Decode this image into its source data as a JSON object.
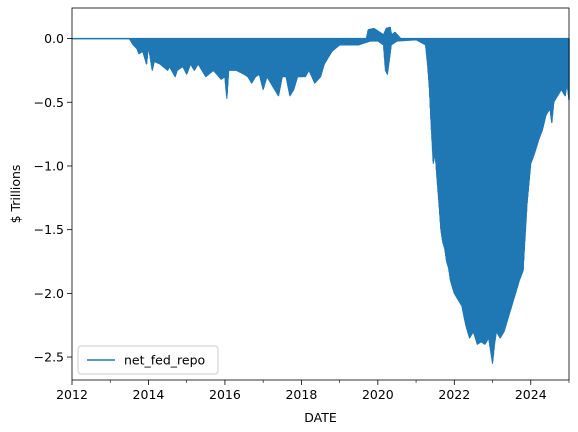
{
  "chart_data": {
    "type": "area",
    "xlabel": "DATE",
    "ylabel": "$ Trillions",
    "xlim": [
      2012.0,
      2025.0
    ],
    "ylim": [
      -2.68,
      0.24
    ],
    "grid": false,
    "legend": {
      "placement": "lower-left"
    },
    "x_ticks": [
      {
        "value": 2012,
        "label": "2012"
      },
      {
        "value": 2014,
        "label": "2014"
      },
      {
        "value": 2016,
        "label": "2016"
      },
      {
        "value": 2018,
        "label": "2018"
      },
      {
        "value": 2020,
        "label": "2020"
      },
      {
        "value": 2022,
        "label": "2022"
      },
      {
        "value": 2024,
        "label": "2024"
      }
    ],
    "x_minor_ticks": [
      2013,
      2015,
      2017,
      2019,
      2021,
      2023,
      2025
    ],
    "y_ticks": [
      {
        "value": 0.0,
        "label": "0.0"
      },
      {
        "value": -0.5,
        "label": "−0.5"
      },
      {
        "value": -1.0,
        "label": "−1.0"
      },
      {
        "value": -1.5,
        "label": "−1.5"
      },
      {
        "value": -2.0,
        "label": "−2.0"
      },
      {
        "value": -2.5,
        "label": "−2.5"
      }
    ],
    "series": [
      {
        "name": "net_fed_repo",
        "color": "#1f77b4",
        "upper_envelope": {
          "x": [
            2012.0,
            2019.7,
            2019.75,
            2019.9,
            2020.0,
            2020.15,
            2020.22,
            2020.32,
            2020.36,
            2020.45,
            2020.6,
            2025.0
          ],
          "y": [
            0.0,
            0.0,
            0.07,
            0.08,
            0.06,
            0.03,
            0.08,
            0.09,
            0.03,
            0.05,
            0.0,
            0.0
          ]
        },
        "lower_envelope": {
          "x": [
            2012.0,
            2013.5,
            2013.6,
            2013.7,
            2013.75,
            2013.85,
            2013.95,
            2014.0,
            2014.1,
            2014.15,
            2014.3,
            2014.5,
            2014.55,
            2014.7,
            2014.75,
            2014.9,
            2015.0,
            2015.1,
            2015.2,
            2015.3,
            2015.5,
            2015.7,
            2015.9,
            2016.0,
            2016.05,
            2016.1,
            2016.3,
            2016.5,
            2016.6,
            2016.7,
            2016.8,
            2016.9,
            2017.0,
            2017.1,
            2017.2,
            2017.3,
            2017.4,
            2017.5,
            2017.6,
            2017.7,
            2017.8,
            2017.9,
            2018.0,
            2018.1,
            2018.2,
            2018.35,
            2018.5,
            2018.6,
            2018.8,
            2019.0,
            2019.2,
            2019.5,
            2019.8,
            2020.0,
            2020.15,
            2020.2,
            2020.25,
            2020.35,
            2020.5,
            2021.0,
            2021.25,
            2021.3,
            2021.35,
            2021.4,
            2021.45,
            2021.5,
            2021.55,
            2021.6,
            2021.65,
            2021.7,
            2021.75,
            2021.8,
            2021.85,
            2021.9,
            2022.0,
            2022.1,
            2022.2,
            2022.3,
            2022.4,
            2022.5,
            2022.6,
            2022.7,
            2022.8,
            2022.9,
            2023.0,
            2023.05,
            2023.1,
            2023.2,
            2023.3,
            2023.4,
            2023.5,
            2023.6,
            2023.7,
            2023.8,
            2023.9,
            2024.0,
            2024.1,
            2024.2,
            2024.3,
            2024.4,
            2024.5,
            2024.55,
            2024.6,
            2024.7,
            2024.8,
            2024.9,
            2024.95,
            2025.0
          ],
          "y": [
            0.0,
            0.0,
            -0.05,
            -0.08,
            -0.12,
            -0.1,
            -0.2,
            -0.06,
            -0.25,
            -0.18,
            -0.2,
            -0.25,
            -0.22,
            -0.3,
            -0.25,
            -0.22,
            -0.28,
            -0.2,
            -0.25,
            -0.2,
            -0.3,
            -0.25,
            -0.32,
            -0.3,
            -0.47,
            -0.25,
            -0.25,
            -0.28,
            -0.3,
            -0.35,
            -0.3,
            -0.28,
            -0.4,
            -0.3,
            -0.35,
            -0.4,
            -0.45,
            -0.3,
            -0.3,
            -0.45,
            -0.4,
            -0.3,
            -0.3,
            -0.3,
            -0.25,
            -0.35,
            -0.3,
            -0.2,
            -0.1,
            -0.05,
            -0.05,
            -0.05,
            -0.02,
            -0.02,
            -0.05,
            -0.25,
            -0.28,
            -0.05,
            -0.02,
            -0.01,
            -0.05,
            -0.2,
            -0.4,
            -0.7,
            -0.98,
            -0.9,
            -1.1,
            -1.3,
            -1.5,
            -1.6,
            -1.65,
            -1.75,
            -1.8,
            -1.9,
            -2.0,
            -2.05,
            -2.1,
            -2.25,
            -2.35,
            -2.3,
            -2.4,
            -2.38,
            -2.4,
            -2.35,
            -2.55,
            -2.4,
            -2.3,
            -2.35,
            -2.3,
            -2.2,
            -2.1,
            -2.0,
            -1.9,
            -1.82,
            -1.3,
            -0.98,
            -0.9,
            -0.8,
            -0.72,
            -0.6,
            -0.55,
            -0.66,
            -0.5,
            -0.45,
            -0.4,
            -0.45,
            -0.35,
            -0.48
          ]
        }
      }
    ]
  }
}
